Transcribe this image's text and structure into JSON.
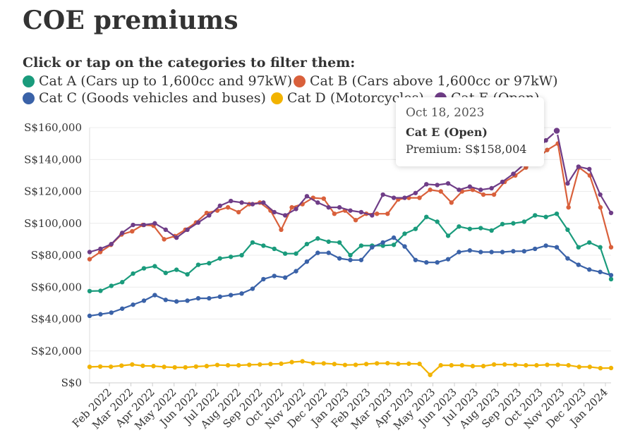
{
  "title": "COE premiums",
  "instruction": "Click or tap on the categories to filter them:",
  "legend": [
    {
      "label": "Cat A (Cars up to 1,600cc and 97kW)",
      "color": "#1a9b7c"
    },
    {
      "label": "Cat B (Cars above 1,600cc or 97kW)",
      "color": "#d9603b"
    },
    {
      "label": "Cat C (Goods vehicles and buses)",
      "color": "#3a62a8"
    },
    {
      "label": "Cat D (Motorcycles)",
      "color": "#f2b300"
    },
    {
      "label": "Cat E (Open)",
      "color": "#6f3d87"
    }
  ],
  "tooltip": {
    "date": "Oct 18, 2023",
    "series": "Cat E (Open)",
    "value": "Premium: S$158,004"
  },
  "chart_data": {
    "type": "line",
    "title": "COE premiums",
    "ylim": [
      0,
      160000
    ],
    "y_ticks": [
      {
        "value": 0,
        "label": "S$0"
      },
      {
        "value": 20000,
        "label": "S$20,000"
      },
      {
        "value": 40000,
        "label": "S$40,000"
      },
      {
        "value": 60000,
        "label": "S$60,000"
      },
      {
        "value": 80000,
        "label": "S$80,000"
      },
      {
        "value": 100000,
        "label": "S$100,000"
      },
      {
        "value": 120000,
        "label": "S$120,000"
      },
      {
        "value": 140000,
        "label": "S$140,000"
      },
      {
        "value": 160000,
        "label": "S$160,000"
      }
    ],
    "x_ticks": [
      "Feb 2022",
      "Mar 2022",
      "Apr 2022",
      "May 2022",
      "Jun 2022",
      "Jul 2022",
      "Aug 2022",
      "Sep 2022",
      "Oct 2022",
      "Nov 2022",
      "Dec 2022",
      "Jan 2023",
      "Feb 2023",
      "Mar 2023",
      "Apr 2023",
      "May 2023",
      "Jun 2023",
      "Jul 2023",
      "Aug 2023",
      "Sep 2023",
      "Oct 2023",
      "Nov 2023",
      "Dec 2023",
      "Jan 2024"
    ],
    "x_start": "Jan 2022",
    "x_end": "Jan 2024",
    "grid": true,
    "legend_position": "top",
    "series": [
      {
        "name": "Cat A (Cars up to 1,600cc and 97kW)",
        "color": "#1a9b7c",
        "values": [
          57500,
          57700,
          60800,
          63100,
          68500,
          71800,
          73100,
          68900,
          70900,
          68000,
          74000,
          75000,
          78000,
          79000,
          80000,
          88000,
          86000,
          84000,
          81000,
          81000,
          87000,
          90500,
          88500,
          88000,
          80000,
          86000,
          86000,
          86000,
          86500,
          93500,
          96500,
          104000,
          101000,
          92200,
          98000,
          96500,
          97000,
          95500,
          99500,
          100000,
          101000,
          105000,
          104000,
          106000,
          96000,
          85000,
          88000,
          85000,
          65000
        ]
      },
      {
        "name": "Cat B (Cars above 1,600cc or 97kW)",
        "color": "#d9603b",
        "values": [
          77500,
          82000,
          86500,
          93000,
          95000,
          99000,
          98500,
          90000,
          92000,
          96000,
          100500,
          106500,
          108000,
          110000,
          107000,
          112000,
          113000,
          108000,
          96000,
          110000,
          112000,
          116000,
          115500,
          106000,
          108000,
          102000,
          106000,
          106000,
          106000,
          115000,
          116000,
          116000,
          121000,
          120000,
          113000,
          120000,
          121000,
          118000,
          118000,
          126000,
          130000,
          135000,
          140000,
          146000,
          150000,
          110000,
          135000,
          130000,
          110000,
          85000
        ]
      },
      {
        "name": "Cat C (Goods vehicles and buses)",
        "color": "#3a62a8",
        "values": [
          42000,
          43000,
          44000,
          46500,
          49000,
          51500,
          55000,
          52000,
          51000,
          51500,
          53000,
          53000,
          54000,
          55000,
          56000,
          59000,
          65000,
          67000,
          66000,
          70000,
          76000,
          81500,
          81500,
          78000,
          77000,
          77000,
          85000,
          88000,
          91000,
          85500,
          77000,
          75500,
          75500,
          77500,
          82000,
          83000,
          82000,
          82000,
          82000,
          82500,
          82500,
          84000,
          86000,
          85000,
          78000,
          74000,
          71000,
          69500,
          67500
        ]
      },
      {
        "name": "Cat D (Motorcycles)",
        "color": "#f2b300",
        "values": [
          10000,
          10200,
          10100,
          10800,
          11500,
          10700,
          10500,
          10000,
          9700,
          9700,
          10200,
          10500,
          11200,
          11000,
          11000,
          11300,
          11500,
          11800,
          12000,
          13000,
          13500,
          12300,
          12200,
          11800,
          11200,
          11300,
          11800,
          12200,
          12300,
          11900,
          12000,
          11900,
          5000,
          11000,
          11000,
          11000,
          10500,
          10500,
          11500,
          11500,
          11300,
          11000,
          11000,
          11300,
          11300,
          11000,
          10000,
          10000,
          9200,
          9300
        ]
      },
      {
        "name": "Cat E (Open)",
        "color": "#6f3d87",
        "values": [
          82000,
          84000,
          87000,
          94000,
          99000,
          99000,
          100000,
          96000,
          91000,
          96000,
          100500,
          105000,
          111000,
          114000,
          113000,
          112000,
          113000,
          107000,
          105000,
          109000,
          117000,
          113000,
          110000,
          110000,
          108000,
          107000,
          105000,
          118000,
          116000,
          116000,
          119000,
          124500,
          124000,
          125000,
          121000,
          123000,
          121000,
          122000,
          126000,
          131000,
          137000,
          145000,
          152000,
          158004,
          125000,
          135500,
          134000,
          118000,
          106500
        ]
      }
    ]
  }
}
